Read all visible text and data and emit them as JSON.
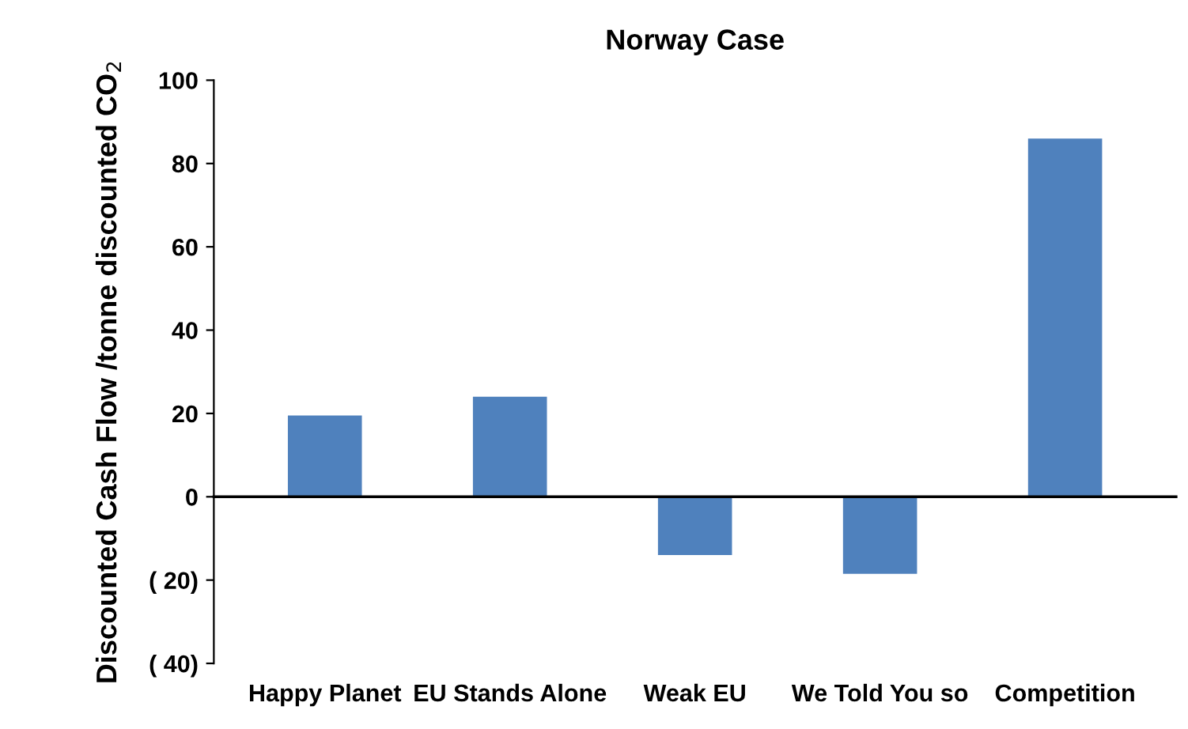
{
  "chart_data": {
    "type": "bar",
    "title": "Norway Case",
    "ylabel": "Discounted Cash Flow /tonne discounted CO$_{2}$",
    "categories": [
      "Happy Planet",
      "EU Stands Alone",
      "Weak EU",
      "We Told You so",
      "Competition"
    ],
    "values": [
      19.5,
      24,
      -14,
      -18.5,
      86
    ],
    "color": "#4f81bd",
    "ylim": [
      -40,
      100
    ],
    "yticks": [
      {
        "value": -40,
        "label": "( 40)"
      },
      {
        "value": -20,
        "label": "( 20)"
      },
      0,
      20,
      40,
      60,
      80,
      100
    ],
    "legend": false
  }
}
